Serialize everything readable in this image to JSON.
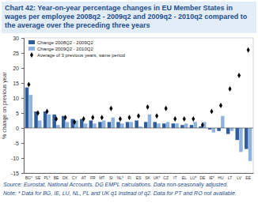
{
  "chart_data": {
    "type": "bar",
    "title": "Chart 42: Year-on-year percentage changes in EU Member States in wages per employee 2008q2 - 2009q2 and 2009q2 - 2010q2 compared to the average over the preceding three years",
    "y_label": "% change on previous year",
    "categories": [
      "BG*",
      "SE",
      "PL*",
      "BE",
      "DK",
      "CY",
      "AT",
      "FR",
      "MT",
      "SI",
      "NL*",
      "FI",
      "ES",
      "SK",
      "UK*",
      "CZ",
      "IT",
      "EL",
      "LU*",
      "DE",
      "IE*",
      "HU",
      "LT",
      "LV",
      "EE"
    ],
    "series": [
      {
        "name": "Change 2008Q2 - 2009Q2",
        "color": "#2f5d9b",
        "type": "bar",
        "values": [
          13.5,
          5.5,
          5.5,
          4.5,
          4,
          3,
          3,
          2.5,
          2,
          2,
          2,
          2,
          2.5,
          2,
          2,
          1.5,
          1.5,
          1,
          1,
          0.5,
          -0.5,
          -1,
          -2,
          -4,
          -7
        ]
      },
      {
        "name": "Change 2009Q2 - 2010Q2",
        "color": "#8fb3dd",
        "type": "bar",
        "values": [
          11,
          2.5,
          4.5,
          1,
          2,
          2.5,
          1.5,
          1.5,
          2.5,
          3.5,
          1.5,
          2,
          0.5,
          4.5,
          1.5,
          2,
          1.5,
          1.5,
          2,
          2,
          -1.5,
          4,
          -1,
          -8,
          -11
        ]
      },
      {
        "name": "Average of 3 previous years, same period",
        "color": "#000000",
        "type": "scatter",
        "marker": "diamond",
        "values": [
          14.5,
          5,
          5.5,
          3,
          3.5,
          2,
          3,
          3.5,
          3.5,
          6.5,
          3,
          3.5,
          4,
          7,
          4,
          6.5,
          3,
          3,
          3,
          1,
          5.5,
          7.5,
          13,
          17.5,
          26
        ]
      }
    ],
    "ylim": [
      -15,
      30
    ],
    "yticks": [
      -15,
      -10,
      -5,
      0,
      5,
      10,
      15,
      20,
      25,
      30
    ],
    "grid": false,
    "legend": "upper left",
    "notes": [
      "Source: Eurostat, National Accounts, DG EMPL calculations. Data non-seasonally adjusted.",
      "Note: * Data for BG, IE, LU, NL, PL and UK q1 instead of q2. Data for PT and RO not available."
    ]
  }
}
